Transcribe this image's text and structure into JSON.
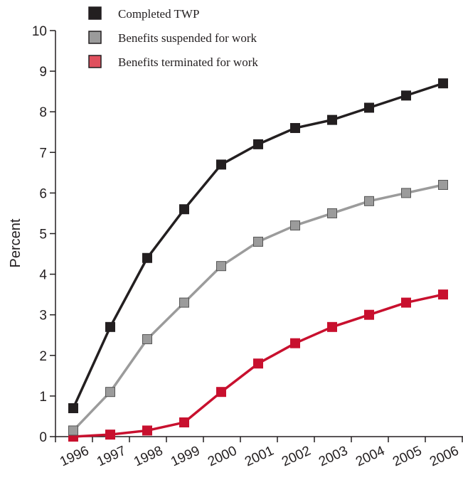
{
  "chart_data": {
    "type": "line",
    "title": "",
    "xlabel": "",
    "ylabel": "Percent",
    "x": [
      "1996",
      "1997",
      "1998",
      "1999",
      "2000",
      "2001",
      "2002",
      "2003",
      "2004",
      "2005",
      "2006"
    ],
    "y_ticks": [
      "0",
      "1",
      "2",
      "3",
      "4",
      "5",
      "6",
      "7",
      "8",
      "9",
      "10"
    ],
    "ylim": [
      0,
      10
    ],
    "grid": false,
    "legend_position": "top-left",
    "series": [
      {
        "name": "Completed TWP",
        "color": "#231f20",
        "marker_color": "#231f20",
        "values": [
          0.7,
          2.7,
          4.4,
          5.6,
          6.7,
          7.2,
          7.6,
          7.8,
          8.1,
          8.4,
          8.7
        ]
      },
      {
        "name": "Benefits suspended for work",
        "color": "#9b9b9b",
        "marker_color": "#9b9b9b",
        "values": [
          0.15,
          1.1,
          2.4,
          3.3,
          4.2,
          4.8,
          5.2,
          5.5,
          5.8,
          6.0,
          6.2
        ]
      },
      {
        "name": "Benefits terminated for work",
        "color": "#c8102e",
        "marker_color": "#c8102e",
        "legend_marker_color": "#e0505e",
        "values": [
          0.0,
          0.05,
          0.15,
          0.35,
          1.1,
          1.8,
          2.3,
          2.7,
          3.0,
          3.3,
          3.5
        ]
      }
    ]
  }
}
